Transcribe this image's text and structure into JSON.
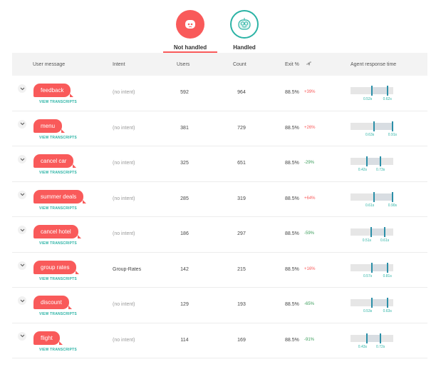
{
  "tabs": [
    {
      "label": "Not handled",
      "icon": "sad-face-icon",
      "active": true
    },
    {
      "label": "Handled",
      "icon": "smiling-bot-icon",
      "active": false
    }
  ],
  "columns": {
    "user_message": "User message",
    "intent": "Intent",
    "users": "Users",
    "count": "Count",
    "exit": "Exit %",
    "trend_icon": "trend-icon",
    "agent_response_time": "Agent response time"
  },
  "view_transcripts_label": "VIEW TRANSCRIPTS",
  "rows": [
    {
      "message": "feedback",
      "intent": "(no intent)",
      "users": "592",
      "count": "964",
      "exit": "88.5%",
      "delta": "+39%",
      "t1": "0.52s",
      "t2": "0.62s",
      "t1_frac": 0.5,
      "t2_frac": 0.86
    },
    {
      "message": "menu",
      "intent": "(no intent)",
      "users": "381",
      "count": "729",
      "exit": "88.5%",
      "delta": "+26%",
      "t1": "0.63s",
      "t2": "0.91s",
      "t1_frac": 0.55,
      "t2_frac": 0.98
    },
    {
      "message": "cancel car",
      "intent": "(no intent)",
      "users": "325",
      "count": "651",
      "exit": "88.5%",
      "delta": "-29%",
      "t1": "0.42s",
      "t2": "0.73s",
      "t1_frac": 0.38,
      "t2_frac": 0.7
    },
    {
      "message": "summer deals",
      "intent": "(no intent)",
      "users": "285",
      "count": "319",
      "exit": "88.5%",
      "delta": "+64%",
      "t1": "0.61s",
      "t2": "0.90s",
      "t1_frac": 0.55,
      "t2_frac": 0.98
    },
    {
      "message": "cancel hotel",
      "intent": "(no intent)",
      "users": "186",
      "count": "297",
      "exit": "88.5%",
      "delta": "-59%",
      "t1": "0.51s",
      "t2": "0.61s",
      "t1_frac": 0.48,
      "t2_frac": 0.8
    },
    {
      "message": "group rates",
      "intent": "Group-Rates",
      "users": "142",
      "count": "215",
      "exit": "88.5%",
      "delta": "+16%",
      "t1": "0.57s",
      "t2": "0.81s",
      "t1_frac": 0.5,
      "t2_frac": 0.86
    },
    {
      "message": "discount",
      "intent": "(no intent)",
      "users": "129",
      "count": "193",
      "exit": "88.5%",
      "delta": "-65%",
      "t1": "0.53s",
      "t2": "0.63s",
      "t1_frac": 0.5,
      "t2_frac": 0.86
    },
    {
      "message": "flight",
      "intent": "(no intent)",
      "users": "114",
      "count": "169",
      "exit": "88.5%",
      "delta": "-91%",
      "t1": "0.43s",
      "t2": "0.72s",
      "t1_frac": 0.38,
      "t2_frac": 0.7
    }
  ],
  "colors": {
    "accent": "#f95a5a",
    "teal": "#2bb3a5",
    "marker": "#2b8fa8",
    "negative": "#3a9d5a"
  }
}
